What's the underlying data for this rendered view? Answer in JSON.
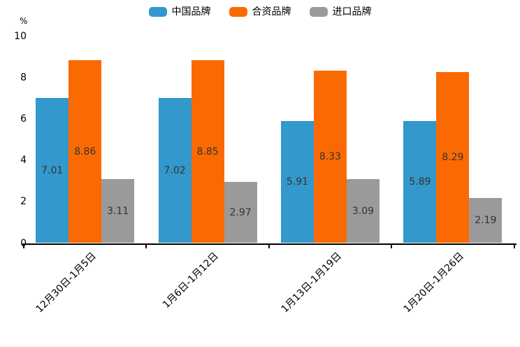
{
  "chart_data": {
    "type": "bar",
    "title": "",
    "ylabel": "%",
    "xlabel": "",
    "ylim": [
      0,
      10
    ],
    "yticks": [
      0,
      2,
      4,
      6,
      8,
      10
    ],
    "grid": false,
    "legend_position": "top",
    "categories": [
      "12月30日-1月5日",
      "1月6日-1月12日",
      "1月13日-1月19日",
      "1月20日-1月26日"
    ],
    "series": [
      {
        "name": "中国品牌",
        "color": "#3398cb",
        "values": [
          7.01,
          7.02,
          5.91,
          5.89
        ]
      },
      {
        "name": "合资品牌",
        "color": "#fb6a02",
        "values": [
          8.86,
          8.85,
          8.33,
          8.29
        ]
      },
      {
        "name": "进口品牌",
        "color": "#9a9a9a",
        "values": [
          3.11,
          2.97,
          3.09,
          2.19
        ]
      }
    ],
    "bar_label_color": "#333333",
    "axis_color": "#000000",
    "background_color": "#ffffff"
  }
}
